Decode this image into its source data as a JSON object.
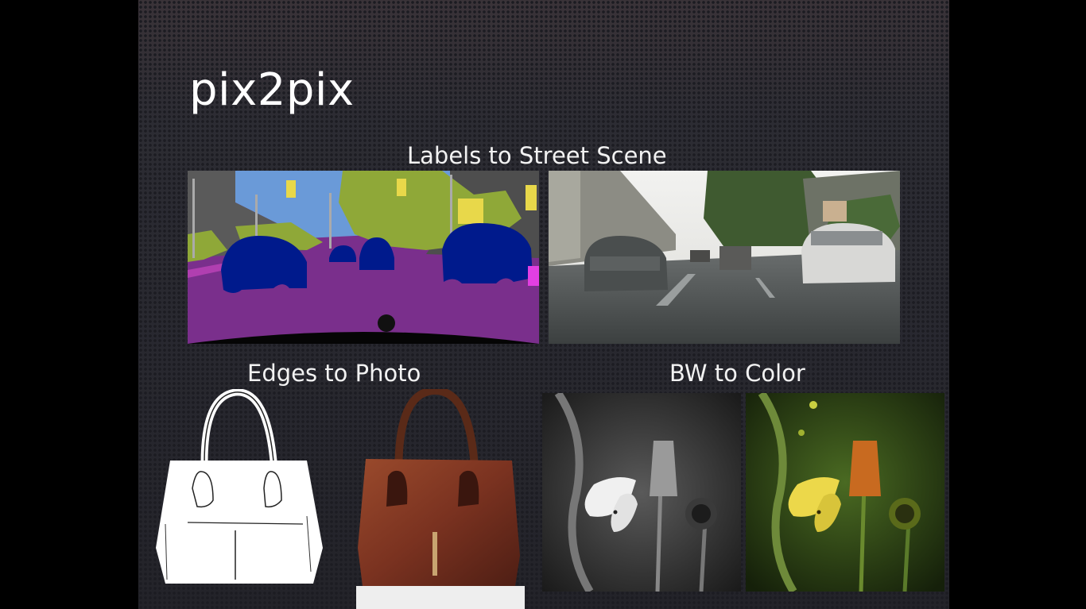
{
  "slide": {
    "title": "pix2pix",
    "captions": {
      "street": "Labels to Street Scene",
      "edges": "Edges to Photo",
      "bw": "BW to Color"
    }
  },
  "colors": {
    "background": "#2a2a31",
    "text": "#ffffff",
    "label_road": "#7a2f8c",
    "label_car": "#001a8c",
    "label_sky": "#6a9ad8",
    "label_vegetation": "#8fa838",
    "label_building": "#5a5a5a",
    "label_sign": "#e8d84a"
  }
}
